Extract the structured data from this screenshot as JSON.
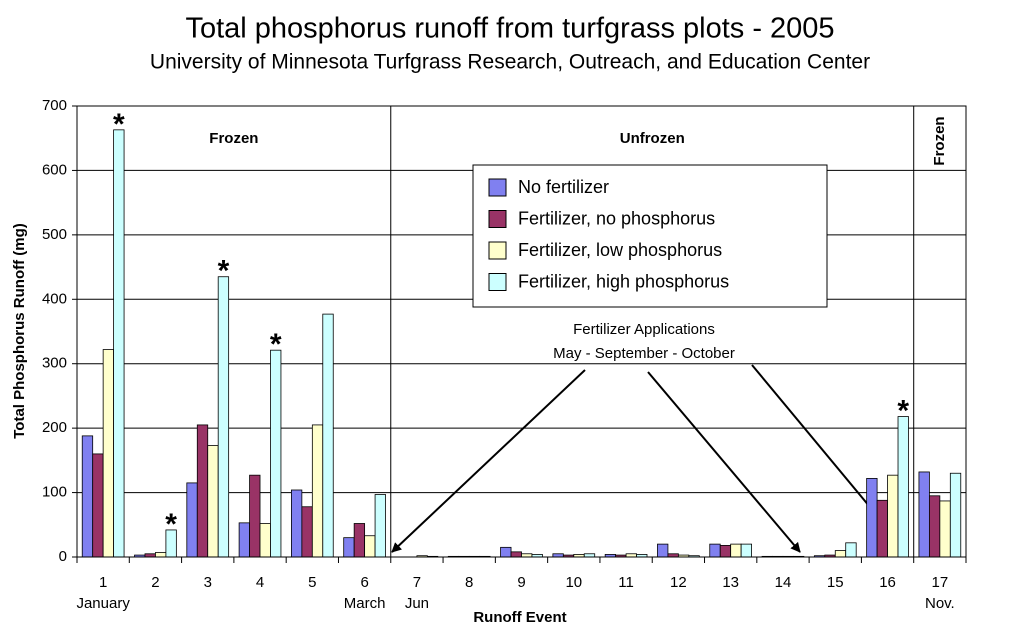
{
  "chart_data": {
    "type": "bar",
    "title": "Total phosphorus runoff from turfgrass plots - 2005",
    "subtitle": "University of Minnesota Turfgrass Research, Outreach, and Education Center",
    "x_label": "Runoff Event",
    "y_label": "Total Phosphorus Runoff (mg)",
    "categories": [
      "1",
      "2",
      "3",
      "4",
      "5",
      "6",
      "7",
      "8",
      "9",
      "10",
      "11",
      "12",
      "13",
      "14",
      "15",
      "16",
      "17"
    ],
    "series": [
      {
        "name": "No fertilizer",
        "color": "#8080f0",
        "values": [
          188,
          3,
          115,
          53,
          104,
          30,
          0,
          1,
          15,
          5,
          4,
          20,
          20,
          1,
          2,
          122,
          132
        ]
      },
      {
        "name": "Fertilizer, no phosphorus",
        "color": "#993366",
        "values": [
          160,
          5,
          205,
          127,
          78,
          52,
          0,
          1,
          8,
          3,
          3,
          5,
          18,
          1,
          3,
          88,
          95
        ]
      },
      {
        "name": "Fertilizer, low phosphorus",
        "color": "#ffffcc",
        "values": [
          322,
          7,
          173,
          52,
          205,
          33,
          2,
          1,
          5,
          4,
          5,
          3,
          20,
          1,
          10,
          127,
          87
        ]
      },
      {
        "name": "Fertilizer, high phosphorus",
        "color": "#ccffff",
        "values": [
          663,
          42,
          435,
          321,
          377,
          97,
          1,
          1,
          4,
          5,
          4,
          2,
          20,
          1,
          22,
          218,
          130
        ]
      }
    ],
    "ylim": [
      0,
      700
    ],
    "yticks": [
      0,
      100,
      200,
      300,
      400,
      500,
      600,
      700
    ],
    "grid": true,
    "sublabels": [
      {
        "text": "January",
        "category": "1"
      },
      {
        "text": "March",
        "category": "6"
      },
      {
        "text": "Jun",
        "category": "7"
      },
      {
        "text": "Nov.",
        "category": "17"
      }
    ],
    "regions": [
      {
        "label": "Frozen",
        "start": "1",
        "end": "6"
      },
      {
        "label": "Unfrozen",
        "start": "7",
        "end": "16"
      },
      {
        "label": "Frozen",
        "start": "17",
        "end": "17"
      }
    ],
    "markers": [
      {
        "text": "*",
        "category": "1"
      },
      {
        "text": "*",
        "category": "2"
      },
      {
        "text": "*",
        "category": "3"
      },
      {
        "text": "*",
        "category": "4"
      },
      {
        "text": "*",
        "category": "16"
      }
    ],
    "annotation": [
      "Fertilizer Applications",
      "May - September - October"
    ]
  }
}
